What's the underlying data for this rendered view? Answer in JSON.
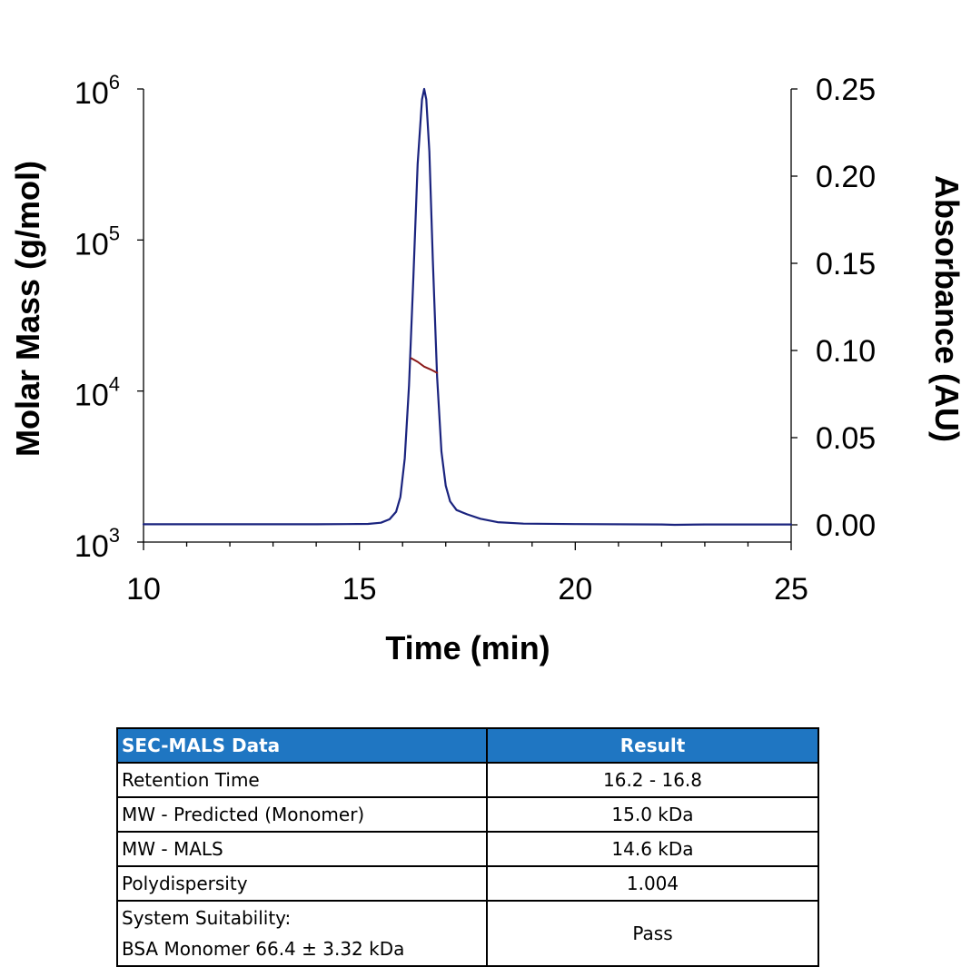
{
  "chart_data": {
    "type": "line",
    "xlabel": "Time (min)",
    "ylabel_left": "Molar Mass (g/mol)",
    "ylabel_right": "Absorbance (AU)",
    "xlim": [
      10,
      25
    ],
    "x_ticks": [
      "10",
      "15",
      "20",
      "25"
    ],
    "y_left_scale": "log",
    "y_left_lim": [
      1000,
      1000000
    ],
    "y_left_ticks": [
      {
        "base": "10",
        "exp": "3"
      },
      {
        "base": "10",
        "exp": "4"
      },
      {
        "base": "10",
        "exp": "5"
      },
      {
        "base": "10",
        "exp": "6"
      }
    ],
    "y_right_lim": [
      0,
      0.25
    ],
    "y_right_ticks": [
      "0.00",
      "0.05",
      "0.10",
      "0.15",
      "0.20",
      "0.25"
    ],
    "grid": false,
    "series": [
      {
        "axis": "right",
        "color": "#1a237e",
        "x": [
          10.0,
          12.0,
          14.0,
          15.2,
          15.5,
          15.7,
          15.85,
          15.95,
          16.05,
          16.15,
          16.25,
          16.35,
          16.45,
          16.5,
          16.55,
          16.62,
          16.7,
          16.8,
          16.9,
          17.0,
          17.1,
          17.25,
          17.5,
          17.8,
          18.2,
          18.8,
          20.0,
          22.0,
          22.3,
          23.0,
          25.0
        ],
        "y": [
          0.0003,
          0.0003,
          0.0003,
          0.0005,
          0.0012,
          0.0032,
          0.0075,
          0.016,
          0.038,
          0.08,
          0.142,
          0.207,
          0.244,
          0.25,
          0.244,
          0.214,
          0.152,
          0.085,
          0.042,
          0.0225,
          0.0135,
          0.0085,
          0.006,
          0.0035,
          0.0015,
          0.0007,
          0.0004,
          0.0002,
          0.0,
          0.0002,
          0.0002
        ]
      },
      {
        "axis": "left",
        "color": "#8b1a1a",
        "x": [
          16.2,
          16.35,
          16.5,
          16.65,
          16.8
        ],
        "y": [
          16500,
          15600,
          14500,
          13900,
          13200
        ]
      }
    ]
  },
  "table": {
    "headers": [
      "SEC-MALS Data",
      "Result"
    ],
    "rows": [
      {
        "label": "Retention Time",
        "value": "16.2 - 16.8"
      },
      {
        "label": "MW - Predicted (Monomer)",
        "value": "15.0 kDa"
      },
      {
        "label": "MW - MALS",
        "value": "14.6 kDa"
      },
      {
        "label": "Polydispersity",
        "value": "1.004"
      }
    ],
    "last_row": {
      "label_line1": "System Suitability:",
      "label_line2": "BSA Monomer 66.4 ± 3.32 kDa",
      "value": "Pass"
    }
  }
}
